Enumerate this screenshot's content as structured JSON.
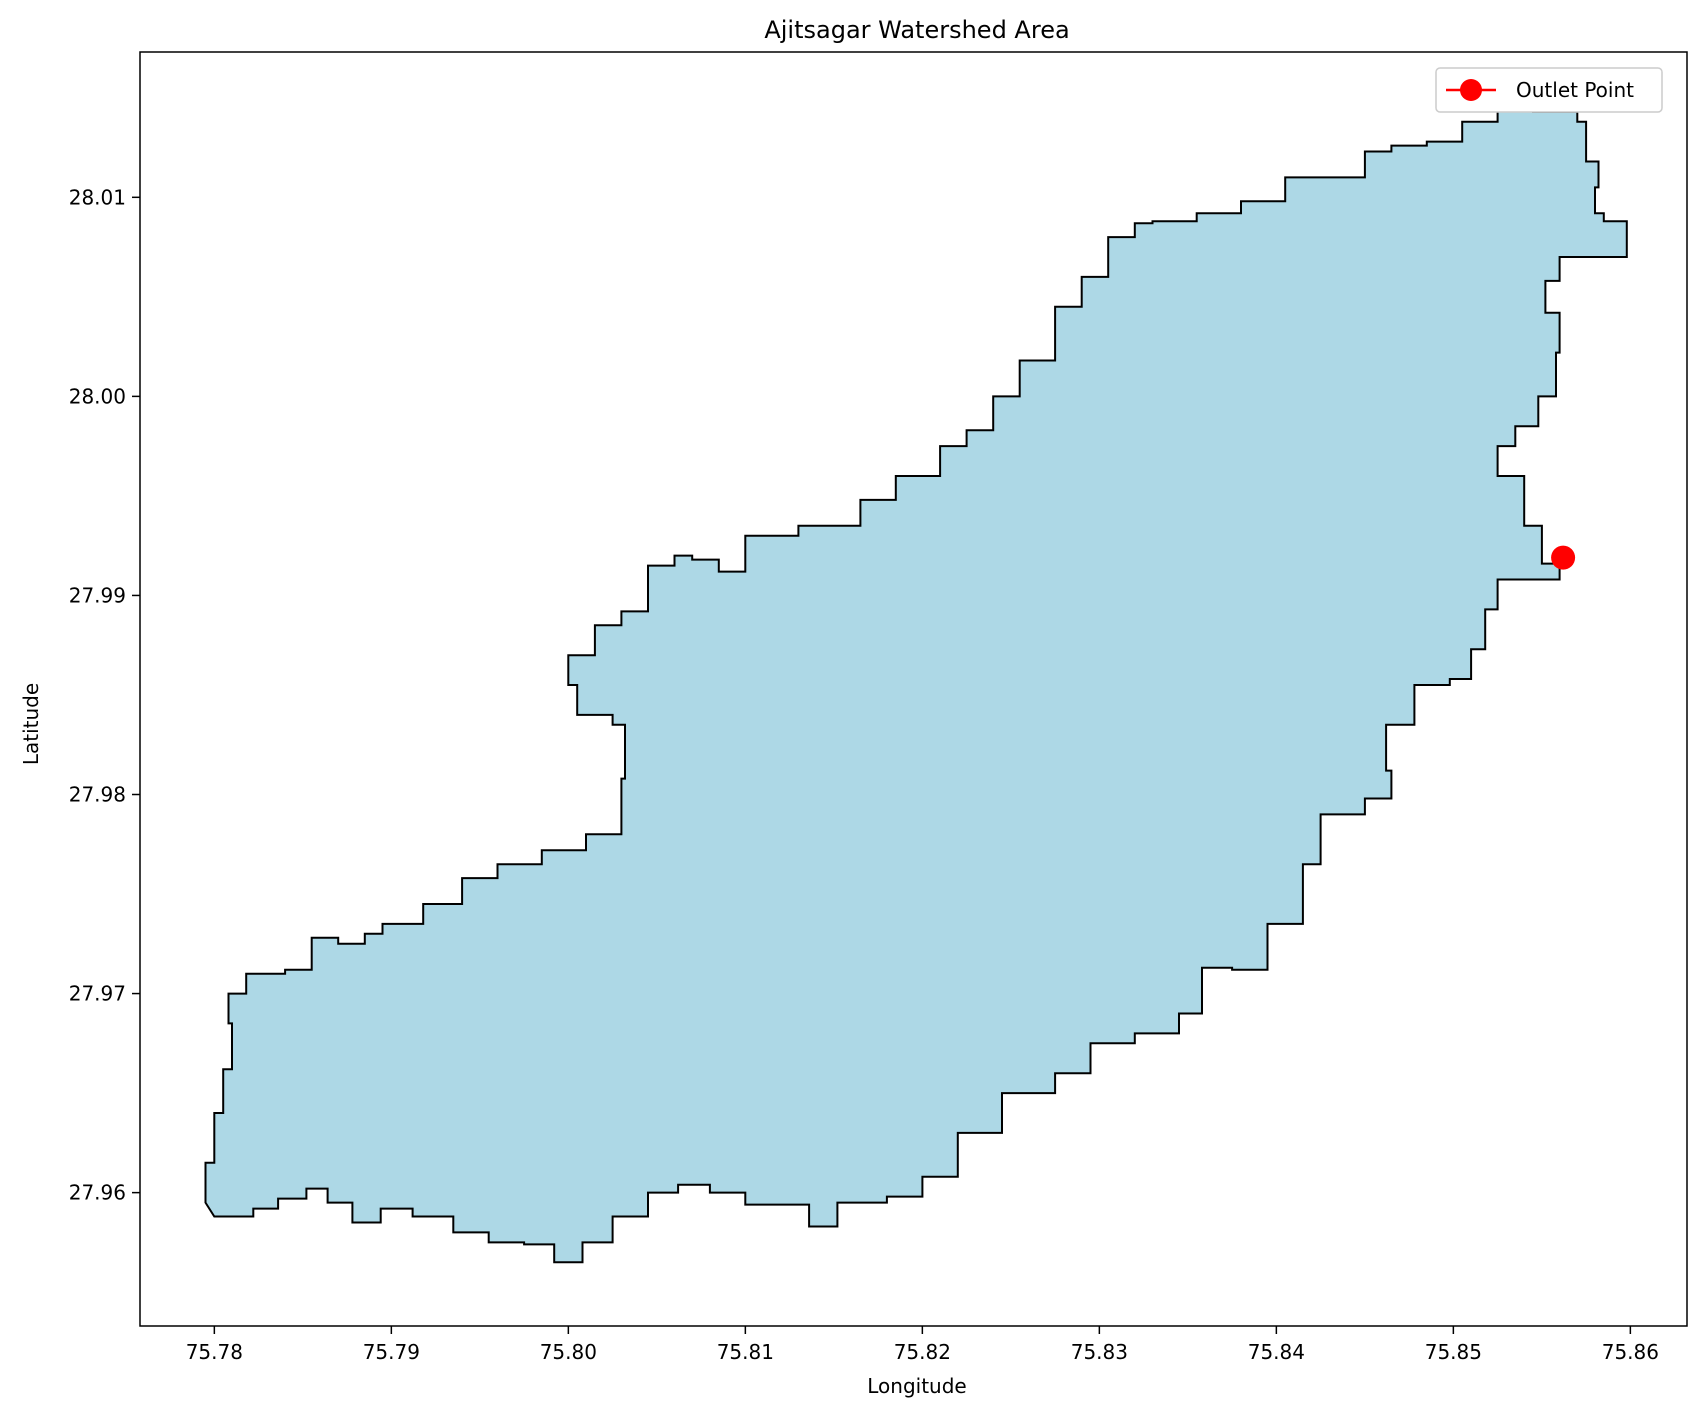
{
  "chart_data": {
    "type": "map",
    "title": "Ajitsagar Watershed Area",
    "xlabel": "Longitude",
    "ylabel": "Latitude",
    "xlim": [
      75.7758,
      75.8632
    ],
    "ylim": [
      27.9533,
      28.0173
    ],
    "x_ticks": [
      75.78,
      75.79,
      75.8,
      75.81,
      75.82,
      75.83,
      75.84,
      75.85,
      75.86
    ],
    "x_tick_labels": [
      "75.78",
      "75.79",
      "75.80",
      "75.81",
      "75.82",
      "75.83",
      "75.84",
      "75.85",
      "75.86"
    ],
    "y_ticks": [
      27.96,
      27.97,
      27.98,
      27.99,
      28.0,
      28.01
    ],
    "y_tick_labels": [
      "27.96",
      "27.97",
      "27.98",
      "27.99",
      "28.00",
      "28.01"
    ],
    "grid": false,
    "legend_position": "top-right",
    "colors": {
      "watershed_fill": "#add8e6",
      "watershed_edge": "#000000",
      "outlet": "#ff0000"
    },
    "series": [
      {
        "name": "",
        "kind": "polygon",
        "points": [
          [
            75.78,
            27.9588
          ],
          [
            75.7822,
            27.9592
          ],
          [
            75.7836,
            27.9597
          ],
          [
            75.7852,
            27.9602
          ],
          [
            75.7864,
            27.9595
          ],
          [
            75.7878,
            27.9585
          ],
          [
            75.7894,
            27.9592
          ],
          [
            75.7912,
            27.9588
          ],
          [
            75.7935,
            27.958
          ],
          [
            75.7955,
            27.9575
          ],
          [
            75.7975,
            27.9574
          ],
          [
            75.7992,
            27.9565
          ],
          [
            75.8008,
            27.9575
          ],
          [
            75.8025,
            27.9588
          ],
          [
            75.8045,
            27.96
          ],
          [
            75.8062,
            27.9604
          ],
          [
            75.808,
            27.96
          ],
          [
            75.81,
            27.9594
          ],
          [
            75.812,
            27.9594
          ],
          [
            75.8136,
            27.9583
          ],
          [
            75.8152,
            27.9595
          ],
          [
            75.818,
            27.9598
          ],
          [
            75.82,
            27.9608
          ],
          [
            75.822,
            27.963
          ],
          [
            75.8245,
            27.965
          ],
          [
            75.8275,
            27.966
          ],
          [
            75.8295,
            27.9675
          ],
          [
            75.832,
            27.968
          ],
          [
            75.8345,
            27.969
          ],
          [
            75.8358,
            27.9713
          ],
          [
            75.8375,
            27.9712
          ],
          [
            75.8395,
            27.9735
          ],
          [
            75.8415,
            27.9765
          ],
          [
            75.8425,
            27.979
          ],
          [
            75.845,
            27.9798
          ],
          [
            75.8465,
            27.9812
          ],
          [
            75.8462,
            27.9835
          ],
          [
            75.8478,
            27.9855
          ],
          [
            75.8498,
            27.9858
          ],
          [
            75.851,
            27.9873
          ],
          [
            75.8518,
            27.9893
          ],
          [
            75.8525,
            27.9908
          ],
          [
            75.8545,
            27.9908
          ],
          [
            75.856,
            27.9916
          ],
          [
            75.855,
            27.9935
          ],
          [
            75.854,
            27.996
          ],
          [
            75.8525,
            27.9975
          ],
          [
            75.8535,
            27.9985
          ],
          [
            75.8548,
            28.0
          ],
          [
            75.8558,
            28.0022
          ],
          [
            75.856,
            28.0042
          ],
          [
            75.8552,
            28.0058
          ],
          [
            75.856,
            28.007
          ],
          [
            75.8598,
            28.0072
          ],
          [
            75.8598,
            28.0088
          ],
          [
            75.8585,
            28.0092
          ],
          [
            75.858,
            28.0105
          ],
          [
            75.8582,
            28.0118
          ],
          [
            75.8575,
            28.0138
          ],
          [
            75.857,
            28.0143
          ],
          [
            75.8545,
            28.0145
          ],
          [
            75.8525,
            28.0138
          ],
          [
            75.8505,
            28.0128
          ],
          [
            75.8485,
            28.0126
          ],
          [
            75.8465,
            28.0123
          ],
          [
            75.845,
            28.011
          ],
          [
            75.843,
            28.011
          ],
          [
            75.8405,
            28.0098
          ],
          [
            75.838,
            28.0092
          ],
          [
            75.8355,
            28.0088
          ],
          [
            75.833,
            28.0087
          ],
          [
            75.832,
            28.008
          ],
          [
            75.8305,
            28.006
          ],
          [
            75.829,
            28.0045
          ],
          [
            75.8275,
            28.0018
          ],
          [
            75.8255,
            28.0
          ],
          [
            75.824,
            27.9983
          ],
          [
            75.8225,
            27.9975
          ],
          [
            75.821,
            27.996
          ],
          [
            75.8185,
            27.9948
          ],
          [
            75.8165,
            27.9935
          ],
          [
            75.813,
            27.993
          ],
          [
            75.81,
            27.9912
          ],
          [
            75.8085,
            27.9918
          ],
          [
            75.807,
            27.992
          ],
          [
            75.806,
            27.9915
          ],
          [
            75.8045,
            27.9892
          ],
          [
            75.803,
            27.9885
          ],
          [
            75.8015,
            27.987
          ],
          [
            75.8,
            27.9855
          ],
          [
            75.8005,
            27.984
          ],
          [
            75.8025,
            27.9835
          ],
          [
            75.8032,
            27.9808
          ],
          [
            75.803,
            27.978
          ],
          [
            75.801,
            27.9772
          ],
          [
            75.7985,
            27.9765
          ],
          [
            75.796,
            27.9758
          ],
          [
            75.794,
            27.9745
          ],
          [
            75.7918,
            27.9735
          ],
          [
            75.7895,
            27.973
          ],
          [
            75.7885,
            27.9725
          ],
          [
            75.787,
            27.9728
          ],
          [
            75.7855,
            27.9712
          ],
          [
            75.784,
            27.971
          ],
          [
            75.7818,
            27.97
          ],
          [
            75.7808,
            27.9685
          ],
          [
            75.781,
            27.9662
          ],
          [
            75.7805,
            27.964
          ],
          [
            75.78,
            27.9615
          ],
          [
            75.7795,
            27.9595
          ]
        ]
      },
      {
        "name": "Outlet Point",
        "kind": "point",
        "points": [
          [
            75.8562,
            27.9919
          ]
        ]
      }
    ]
  }
}
